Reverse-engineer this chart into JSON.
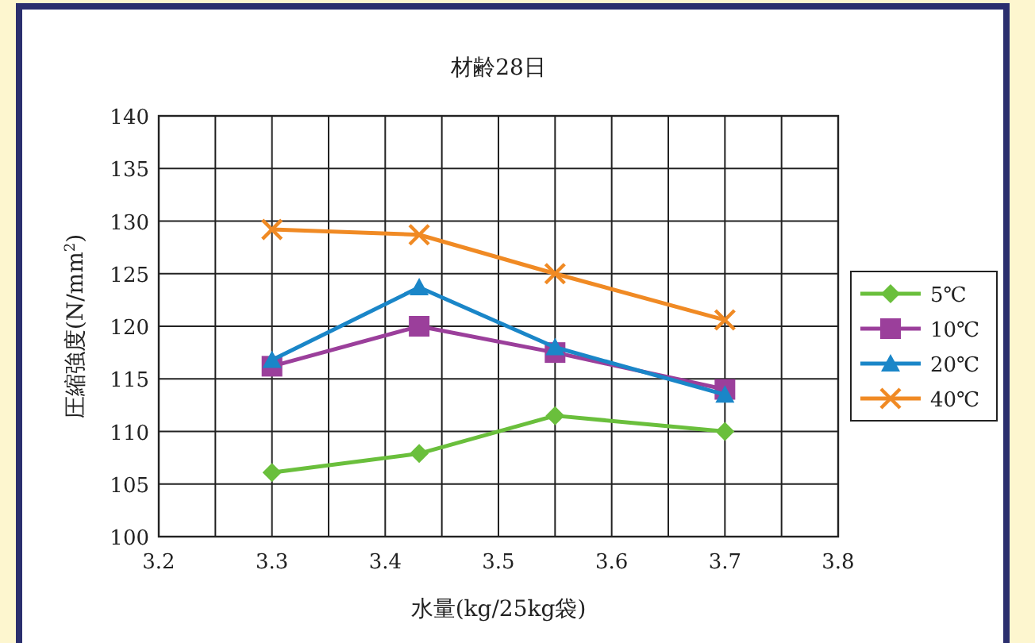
{
  "chart_data": {
    "type": "line",
    "title": "材齢28日",
    "xlabel": "水量(kg/25kg袋)",
    "ylabel": "圧縮強度(N/mm$^{2}$)",
    "xlim": [
      3.2,
      3.8
    ],
    "ylim": [
      100,
      140
    ],
    "xticks": [
      {
        "value": 3.2,
        "label": "3.2"
      },
      {
        "value": 3.25,
        "label": null
      },
      {
        "value": 3.3,
        "label": "3.3"
      },
      {
        "value": 3.35,
        "label": null
      },
      {
        "value": 3.4,
        "label": "3.4"
      },
      {
        "value": 3.45,
        "label": null
      },
      {
        "value": 3.5,
        "label": "3.5"
      },
      {
        "value": 3.55,
        "label": null
      },
      {
        "value": 3.6,
        "label": "3.6"
      },
      {
        "value": 3.65,
        "label": null
      },
      {
        "value": 3.7,
        "label": "3.7"
      },
      {
        "value": 3.75,
        "label": null
      },
      {
        "value": 3.8,
        "label": "3.8"
      }
    ],
    "yticks": [
      100,
      105,
      110,
      115,
      120,
      125,
      130,
      135,
      140
    ],
    "grid": true,
    "legend": "right",
    "x": [
      3.3,
      3.43,
      3.55,
      3.7
    ],
    "series": [
      {
        "name": "5℃",
        "color": "#6abf3c",
        "marker": "diamond",
        "values": [
          106.1,
          107.9,
          111.5,
          110.0
        ]
      },
      {
        "name": "10℃",
        "color": "#9b3f9b",
        "marker": "square",
        "values": [
          116.2,
          120.0,
          117.5,
          114.0
        ]
      },
      {
        "name": "20℃",
        "color": "#1a86c8",
        "marker": "triangle",
        "values": [
          116.8,
          123.7,
          118.0,
          113.5
        ]
      },
      {
        "name": "40℃",
        "color": "#f08a24",
        "marker": "cross",
        "values": [
          129.2,
          128.7,
          125.0,
          120.6
        ]
      }
    ]
  }
}
